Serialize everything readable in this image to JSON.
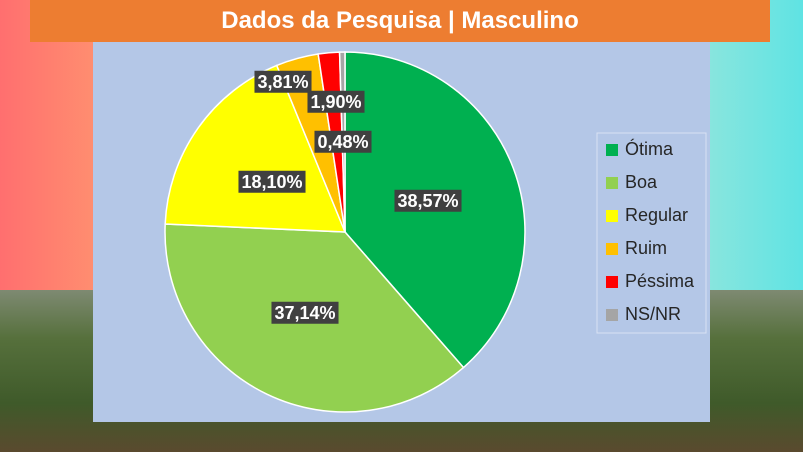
{
  "chart_data": {
    "type": "pie",
    "title": "Dados da Pesquisa | Masculino",
    "categories": [
      "Ótima",
      "Boa",
      "Regular",
      "Ruim",
      "Péssima",
      "NS/NR"
    ],
    "values": [
      38.57,
      37.14,
      18.1,
      3.81,
      1.9,
      0.48
    ],
    "value_labels": [
      "38,57%",
      "37,14%",
      "18,10%",
      "3,81%",
      "1,90%",
      "0,48%"
    ],
    "colors": [
      "#00b050",
      "#92d050",
      "#ffff00",
      "#ffc000",
      "#ff0000",
      "#a5a5a5"
    ],
    "legend": "right"
  }
}
